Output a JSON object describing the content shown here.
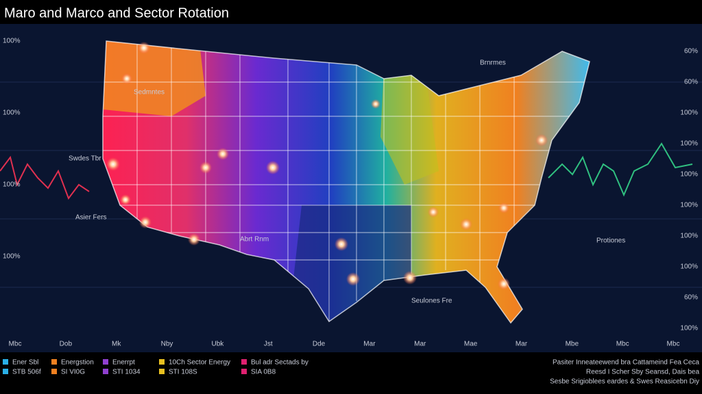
{
  "header": {
    "title": "Maro and Marco and Sector Rotation"
  },
  "x_labels": [
    "Mbc",
    "Dob",
    "Mk",
    "Nby",
    "Ubk",
    "Jst",
    "Dde",
    "Mar",
    "Mar",
    "Mae",
    "Mar",
    "Mbe",
    "Mbc",
    "Mbc"
  ],
  "left_labels": [
    "100%",
    "100%",
    "100%",
    "100%"
  ],
  "right_labels": [
    "60%",
    "60%",
    "100%",
    "100%",
    "100%",
    "100%",
    "100%",
    "100%",
    "60%",
    "100%"
  ],
  "map_labels": [
    "Brnrmes",
    "Sedmntes",
    "Swdes Tbr",
    "Asier Fers",
    "Abrt Rnm",
    "Protiones",
    "Seulones Fre"
  ],
  "legend": [
    {
      "name": "Ener Sbl",
      "value": "STB 506f",
      "color": "#2ab0e8"
    },
    {
      "name": "Energstion",
      "value": "SI VI0G",
      "color": "#f08020"
    },
    {
      "name": "Enerrpt",
      "value": "STI 1034",
      "color": "#9040d0"
    },
    {
      "name": "10Ch Sector Energy",
      "value": "STI 108S",
      "color": "#e8c020"
    },
    {
      "name": "Bul adr Sectads by",
      "value": "SIA 0B8",
      "color": "#e02070"
    }
  ],
  "notes": [
    "Pasiter Inneateewend bra  Cattameind Fea Ceca",
    "Reesd I Scher Sby  Seansd, Dais bea",
    "Sesbe Srigioblees eardes & Swes Reasicebn Diy"
  ]
}
